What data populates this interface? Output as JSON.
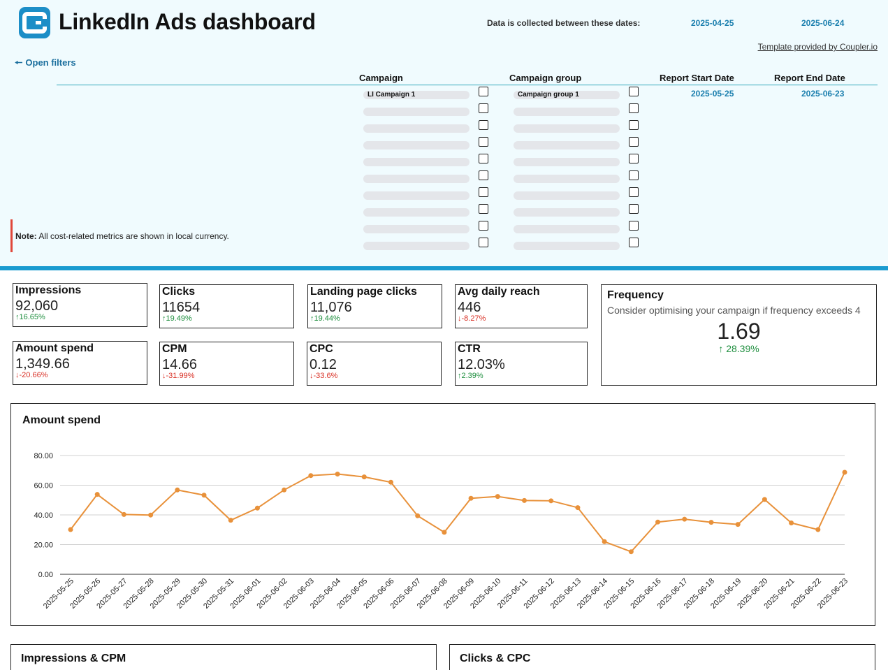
{
  "header": {
    "title": "LinkedIn Ads dashboard",
    "dates_label": "Data is collected between these dates:",
    "date_from": "2025-04-25",
    "date_to": "2025-06-24",
    "template_link": "Template provided by Coupler.io",
    "logo_icon": "coupler-logo-icon",
    "accent_color": "#1a9bd0"
  },
  "filters": {
    "open_label": "Open filters",
    "columns": {
      "campaign": "Campaign",
      "campaign_group": "Campaign group",
      "report_start": "Report Start Date",
      "report_end": "Report End Date"
    },
    "campaign_items": [
      "LI Campaign 1",
      "",
      "",
      "",
      "",
      "",
      "",
      "",
      "",
      ""
    ],
    "campaign_group_items": [
      "Campaign group 1",
      "",
      "",
      "",
      "",
      "",
      "",
      "",
      "",
      ""
    ],
    "report_start_date": "2025-05-25",
    "report_end_date": "2025-06-23"
  },
  "note": {
    "label": "Note:",
    "text": " All cost-related metrics are shown in local currency."
  },
  "kpis": [
    {
      "title": "Impressions",
      "value": "92,060",
      "delta": "16.65%",
      "trend": "up"
    },
    {
      "title": "Clicks",
      "value": "11654",
      "delta": "19.49%",
      "trend": "up"
    },
    {
      "title": "Landing page clicks",
      "value": "11,076",
      "delta": "19.44%",
      "trend": "up"
    },
    {
      "title": "Avg daily reach",
      "value": "446",
      "delta": "-8.27%",
      "trend": "down"
    },
    {
      "title": "Amount spend",
      "value": "1,349.66",
      "delta": "-20.66%",
      "trend": "down"
    },
    {
      "title": "CPM",
      "value": "14.66",
      "delta": "-31.99%",
      "trend": "down"
    },
    {
      "title": "CPC",
      "value": "0.12",
      "delta": "-33.6%",
      "trend": "down"
    },
    {
      "title": "CTR",
      "value": "12.03%",
      "delta": "2.39%",
      "trend": "up"
    }
  ],
  "frequency": {
    "title": "Frequency",
    "subtitle": "Consider optimising your campaign if frequency exceeds 4",
    "value": "1.69",
    "delta": "28.39%",
    "trend": "up"
  },
  "chart_data": {
    "type": "line",
    "title": "Amount spend",
    "xlabel": "",
    "ylabel": "",
    "ylim": [
      0,
      80
    ],
    "yticks": [
      "0.00",
      "20.00",
      "40.00",
      "60.00",
      "80.00"
    ],
    "grid": true,
    "color": "#e8913a",
    "x": [
      "2025-05-25",
      "2025-05-26",
      "2025-05-27",
      "2025-05-28",
      "2025-05-29",
      "2025-05-30",
      "2025-05-31",
      "2025-06-01",
      "2025-06-02",
      "2025-06-03",
      "2025-06-04",
      "2025-06-05",
      "2025-06-06",
      "2025-06-07",
      "2025-06-08",
      "2025-06-09",
      "2025-06-10",
      "2025-06-11",
      "2025-06-12",
      "2025-06-13",
      "2025-06-14",
      "2025-06-15",
      "2025-06-16",
      "2025-06-17",
      "2025-06-18",
      "2025-06-19",
      "2025-06-20",
      "2025-06-21",
      "2025-06-22",
      "2025-06-23"
    ],
    "values": [
      30.1,
      53.8,
      40.3,
      39.9,
      56.8,
      53.3,
      36.4,
      44.6,
      56.8,
      66.5,
      67.5,
      65.6,
      62.0,
      39.4,
      28.3,
      51.2,
      52.4,
      49.7,
      49.5,
      44.9,
      22.0,
      15.2,
      35.2,
      37.1,
      35.0,
      33.6,
      50.4,
      34.6,
      30.1,
      68.7
    ]
  },
  "bottom_charts": {
    "left_title": "Impressions & CPM",
    "right_title": "Clicks & CPC"
  }
}
